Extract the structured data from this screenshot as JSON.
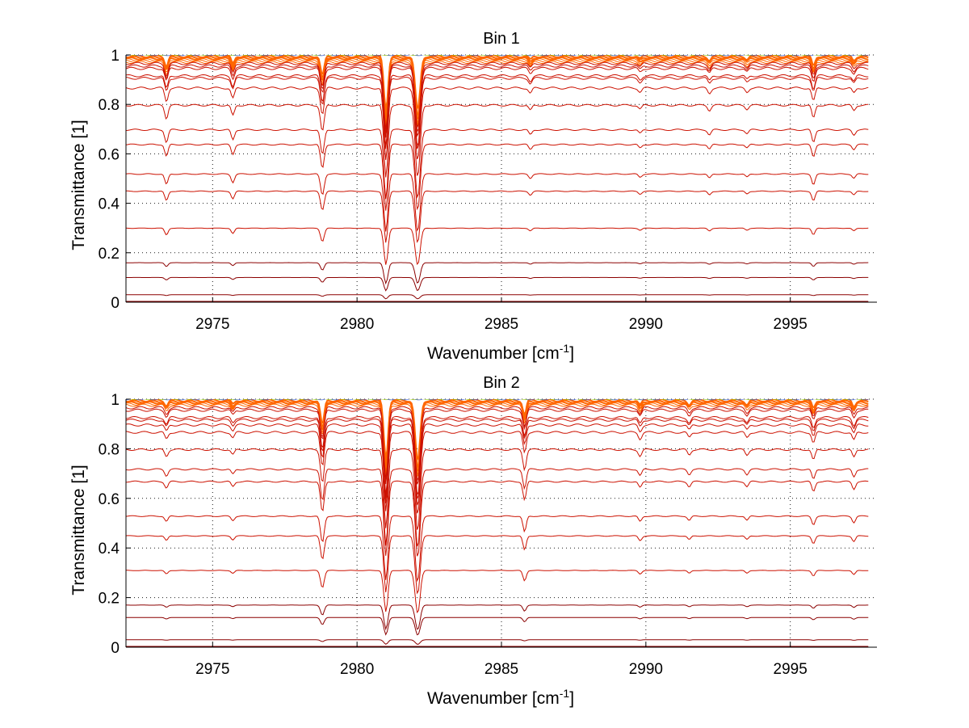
{
  "chart_data": [
    {
      "type": "line",
      "title": "Bin 1",
      "xlabel": "Wavenumber [cm",
      "xlabel_sup": "-1",
      "xlabel_close": "]",
      "ylabel": "Transmittance [1]",
      "xlim": [
        2972,
        2998
      ],
      "ylim": [
        0,
        1
      ],
      "grid": true,
      "xticks": [
        2975,
        2980,
        2985,
        2990,
        2995
      ],
      "yticks": [
        0,
        0.2,
        0.4,
        0.6,
        0.8,
        1
      ],
      "xtick_labels": [
        "2975",
        "2980",
        "2985",
        "2990",
        "2995"
      ],
      "ytick_labels": [
        "0",
        "0.2",
        "0.4",
        "0.6",
        "0.8",
        "1"
      ],
      "x_end": 2997.7,
      "line_colors": {
        "dark": "#8b0000",
        "mid": "#cc1100",
        "top": "#ff6600",
        "green": "#99cc00",
        "blue": "#3355dd"
      },
      "baselines": [
        1.0,
        0.995,
        0.99,
        0.985,
        0.98,
        0.975,
        0.97,
        0.96,
        0.95,
        0.92,
        0.91,
        0.87,
        0.8,
        0.7,
        0.64,
        0.52,
        0.45,
        0.3,
        0.16,
        0.1,
        0.03,
        0.0
      ],
      "lines": [
        {
          "center": 2973.4,
          "depth": 0.1,
          "width": 0.08
        },
        {
          "center": 2975.7,
          "depth": 0.08,
          "width": 0.08
        },
        {
          "center": 2978.8,
          "depth": 0.2,
          "width": 0.09
        },
        {
          "center": 2981.0,
          "depth": 0.55,
          "width": 0.1
        },
        {
          "center": 2982.1,
          "depth": 0.55,
          "width": 0.12
        },
        {
          "center": 2986.0,
          "depth": 0.04,
          "width": 0.08
        },
        {
          "center": 2989.8,
          "depth": 0.03,
          "width": 0.08
        },
        {
          "center": 2992.2,
          "depth": 0.04,
          "width": 0.08
        },
        {
          "center": 2993.5,
          "depth": 0.03,
          "width": 0.08
        },
        {
          "center": 2995.8,
          "depth": 0.1,
          "width": 0.08
        },
        {
          "center": 2997.2,
          "depth": 0.04,
          "width": 0.08
        }
      ]
    },
    {
      "type": "line",
      "title": "Bin 2",
      "xlabel": "Wavenumber [cm",
      "xlabel_sup": "-1",
      "xlabel_close": "]",
      "ylabel": "Transmittance [1]",
      "xlim": [
        2972,
        2998
      ],
      "ylim": [
        0,
        1
      ],
      "grid": true,
      "xticks": [
        2975,
        2980,
        2985,
        2990,
        2995
      ],
      "yticks": [
        0,
        0.2,
        0.4,
        0.6,
        0.8,
        1
      ],
      "xtick_labels": [
        "2975",
        "2980",
        "2985",
        "2990",
        "2995"
      ],
      "ytick_labels": [
        "0",
        "0.2",
        "0.4",
        "0.6",
        "0.8",
        "1"
      ],
      "x_end": 2997.7,
      "line_colors": {
        "dark": "#8b0000",
        "mid": "#cc1100",
        "top": "#ff6600",
        "green": "#99cc00",
        "blue": "#3355dd"
      },
      "baselines": [
        1.0,
        0.995,
        0.99,
        0.985,
        0.98,
        0.97,
        0.96,
        0.93,
        0.92,
        0.9,
        0.87,
        0.8,
        0.72,
        0.67,
        0.53,
        0.45,
        0.31,
        0.17,
        0.12,
        0.03,
        0.0
      ],
      "lines": [
        {
          "center": 2973.4,
          "depth": 0.05,
          "width": 0.08
        },
        {
          "center": 2975.7,
          "depth": 0.04,
          "width": 0.08
        },
        {
          "center": 2978.8,
          "depth": 0.25,
          "width": 0.09
        },
        {
          "center": 2981.0,
          "depth": 0.6,
          "width": 0.1
        },
        {
          "center": 2982.1,
          "depth": 0.62,
          "width": 0.12
        },
        {
          "center": 2985.8,
          "depth": 0.15,
          "width": 0.08
        },
        {
          "center": 2989.8,
          "depth": 0.05,
          "width": 0.08
        },
        {
          "center": 2991.5,
          "depth": 0.04,
          "width": 0.08
        },
        {
          "center": 2993.5,
          "depth": 0.04,
          "width": 0.08
        },
        {
          "center": 2995.8,
          "depth": 0.08,
          "width": 0.08
        },
        {
          "center": 2997.2,
          "depth": 0.06,
          "width": 0.08
        }
      ]
    }
  ]
}
